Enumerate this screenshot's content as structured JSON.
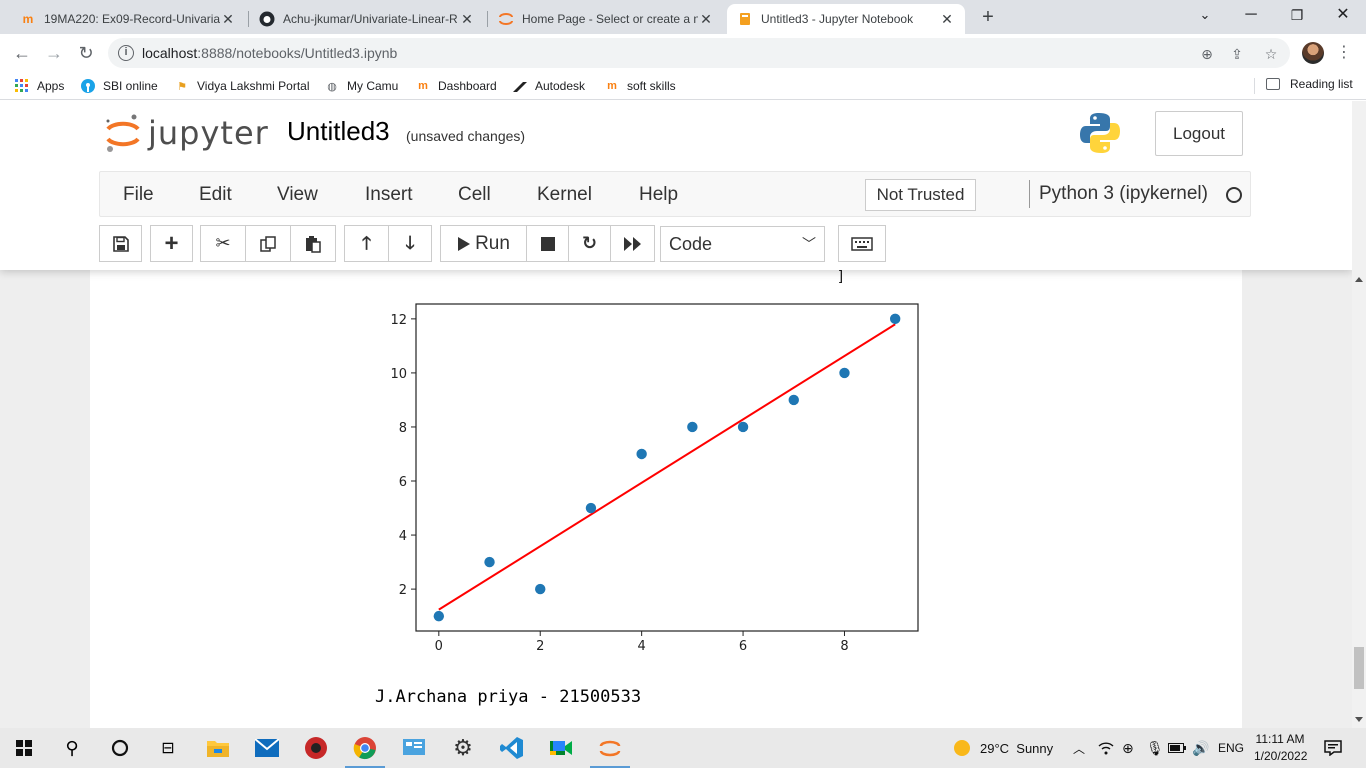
{
  "browser": {
    "tabs": [
      {
        "title": "19MA220: Ex09-Record-Univariat",
        "favicon": "moodle-icon",
        "active": false
      },
      {
        "title": "Achu-jkumar/Univariate-Linear-R",
        "favicon": "github-icon",
        "active": false
      },
      {
        "title": "Home Page - Select or create a n",
        "favicon": "jupyter-icon",
        "active": false
      },
      {
        "title": "Untitled3 - Jupyter Notebook",
        "favicon": "notebook-icon",
        "active": true
      }
    ],
    "url_host": "localhost",
    "url_path": ":8888/notebooks/Untitled3.ipynb",
    "bookmarks": [
      {
        "label": "Apps",
        "icon": "apps-grid-icon"
      },
      {
        "label": "SBI online",
        "icon": "sbi-icon"
      },
      {
        "label": "Vidya Lakshmi Portal",
        "icon": "vidya-icon"
      },
      {
        "label": "My Camu",
        "icon": "globe-icon"
      },
      {
        "label": "Dashboard",
        "icon": "moodle-icon"
      },
      {
        "label": "Autodesk",
        "icon": "autodesk-icon"
      },
      {
        "label": "soft skills",
        "icon": "moodle-icon"
      }
    ],
    "reading_list": "Reading list"
  },
  "jupyter": {
    "logo_text": "jupyter",
    "notebook_name": "Untitled3",
    "autosave_status": "(unsaved changes)",
    "logout_label": "Logout",
    "menu": [
      "File",
      "Edit",
      "View",
      "Insert",
      "Cell",
      "Kernel",
      "Help"
    ],
    "trust_label": "Not Trusted",
    "kernel_name": "Python 3 (ipykernel)",
    "run_label": "Run",
    "cell_type": "Code"
  },
  "output": {
    "text": "J.Archana priya - 21500533"
  },
  "chart_data": {
    "type": "scatter",
    "title": "",
    "xlabel": "",
    "ylabel": "",
    "xlim": [
      -0.45,
      9.45
    ],
    "ylim": [
      0.45,
      12.55
    ],
    "xticks": [
      0,
      2,
      4,
      6,
      8
    ],
    "yticks": [
      2,
      4,
      6,
      8,
      10,
      12
    ],
    "series": [
      {
        "type": "scatter",
        "color": "#1f77b4",
        "x": [
          0,
          1,
          2,
          3,
          4,
          5,
          6,
          7,
          8,
          9
        ],
        "y": [
          1,
          3,
          2,
          5,
          7,
          8,
          8,
          9,
          10,
          12
        ]
      },
      {
        "type": "line",
        "color": "#ff0000",
        "x": [
          0,
          9
        ],
        "y": [
          1.24,
          11.8
        ]
      }
    ]
  },
  "taskbar": {
    "weather": "29°C  Sunny",
    "language": "ENG",
    "time": "11:11 AM",
    "date": "1/20/2022"
  }
}
